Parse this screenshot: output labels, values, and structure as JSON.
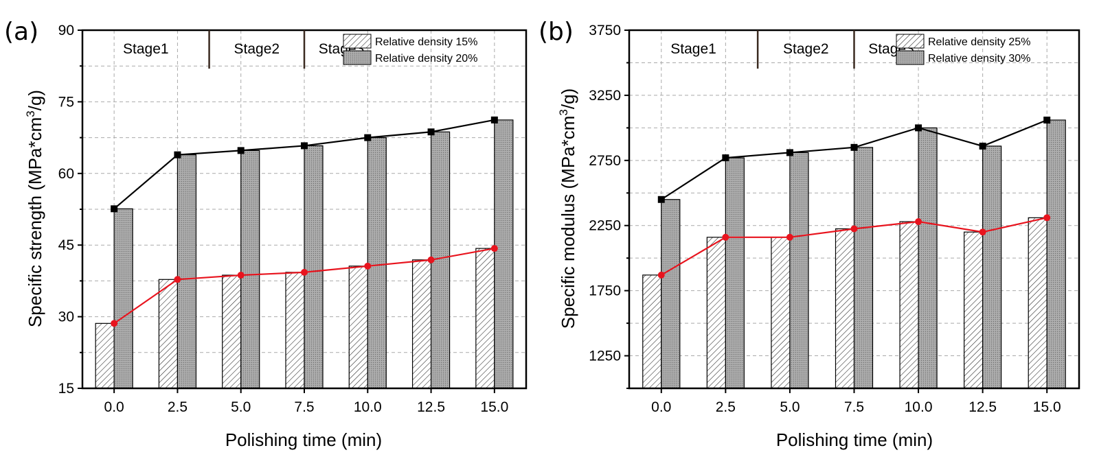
{
  "chart_data": [
    {
      "type": "bar",
      "panel_label": "(a)",
      "xlabel": "Polishing time (min)",
      "ylabel": "Specific strength (MPa*cm³/g)",
      "ylabel_parts": {
        "main": "Specific strength (MPa*cm",
        "sup": "3",
        "tail": "/g)"
      },
      "categories": [
        "0.0",
        "2.5",
        "5.0",
        "7.5",
        "10.0",
        "12.5",
        "15.0"
      ],
      "ylim": [
        15,
        90
      ],
      "yticks": [
        15,
        30,
        45,
        60,
        75,
        90
      ],
      "grid": true,
      "legend_position": "top-right",
      "stages": [
        {
          "label": "Stage1",
          "start": 0,
          "end": 1.5
        },
        {
          "label": "Stage2",
          "start": 1.5,
          "end": 3.0
        },
        {
          "label": "Stage3",
          "start": 3.0,
          "end": 3.6
        }
      ],
      "series": [
        {
          "name": "Relative density 15%",
          "style": "hatched",
          "line_color": "#e8141e",
          "values": [
            28.6,
            37.8,
            38.7,
            39.3,
            40.6,
            41.9,
            44.3
          ]
        },
        {
          "name": "Relative density 20%",
          "style": "gray",
          "line_color": "#000000",
          "values": [
            52.6,
            63.9,
            64.8,
            65.8,
            67.5,
            68.7,
            71.2
          ]
        }
      ]
    },
    {
      "type": "bar",
      "panel_label": "(b)",
      "xlabel": "Polishing time (min)",
      "ylabel": "Specific modulus (MPa*cm³/g)",
      "ylabel_parts": {
        "main": "Specific modulus (MPa*cm",
        "sup": "3",
        "tail": "/g)"
      },
      "categories": [
        "0.0",
        "2.5",
        "5.0",
        "7.5",
        "10.0",
        "12.5",
        "15.0"
      ],
      "ylim": [
        1000,
        3750
      ],
      "yticks": [
        1250,
        1750,
        2250,
        2750,
        3250,
        3750
      ],
      "grid": true,
      "legend_position": "top-right",
      "stages": [
        {
          "label": "Stage1",
          "start": 0,
          "end": 1.5
        },
        {
          "label": "Stage2",
          "start": 1.5,
          "end": 3.0
        },
        {
          "label": "Stage3",
          "start": 3.0,
          "end": 3.6
        }
      ],
      "series": [
        {
          "name": "Relative density 25%",
          "style": "hatched",
          "line_color": "#e8141e",
          "values": [
            1870,
            2160,
            2160,
            2225,
            2280,
            2200,
            2310
          ]
        },
        {
          "name": "Relative density 30%",
          "style": "gray",
          "line_color": "#000000",
          "values": [
            2450,
            2770,
            2810,
            2850,
            3000,
            2860,
            3060
          ]
        }
      ]
    }
  ]
}
